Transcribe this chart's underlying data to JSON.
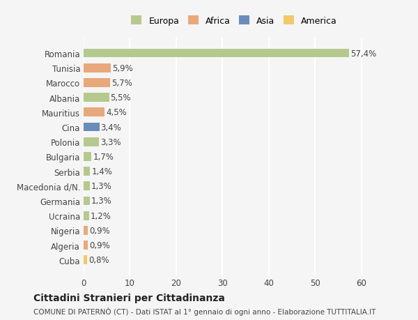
{
  "countries": [
    "Romania",
    "Tunisia",
    "Marocco",
    "Albania",
    "Mauritius",
    "Cina",
    "Polonia",
    "Bulgaria",
    "Serbia",
    "Macedonia d/N.",
    "Germania",
    "Ucraina",
    "Nigeria",
    "Algeria",
    "Cuba"
  ],
  "values": [
    57.4,
    5.9,
    5.7,
    5.5,
    4.5,
    3.4,
    3.3,
    1.7,
    1.4,
    1.3,
    1.3,
    1.2,
    0.9,
    0.9,
    0.8
  ],
  "labels": [
    "57,4%",
    "5,9%",
    "5,7%",
    "5,5%",
    "4,5%",
    "3,4%",
    "3,3%",
    "1,7%",
    "1,4%",
    "1,3%",
    "1,3%",
    "1,2%",
    "0,9%",
    "0,9%",
    "0,8%"
  ],
  "colors": [
    "#b5c98e",
    "#e8a87c",
    "#e8a87c",
    "#b5c98e",
    "#e8a87c",
    "#6b8cba",
    "#b5c98e",
    "#b5c98e",
    "#b5c98e",
    "#b5c98e",
    "#b5c98e",
    "#b5c98e",
    "#e8a87c",
    "#e8a87c",
    "#f0c96b"
  ],
  "legend_labels": [
    "Europa",
    "Africa",
    "Asia",
    "America"
  ],
  "legend_colors": [
    "#b5c98e",
    "#e8a87c",
    "#6b8cba",
    "#f0c96b"
  ],
  "xlim": [
    0,
    65
  ],
  "xticks": [
    0,
    10,
    20,
    30,
    40,
    50,
    60
  ],
  "title": "Cittadini Stranieri per Cittadinanza",
  "subtitle": "COMUNE DI PATERNÒ (CT) - Dati ISTAT al 1° gennaio di ogni anno - Elaborazione TUTTITALIA.IT",
  "bg_color": "#f5f5f5",
  "bar_height": 0.6,
  "grid_color": "#ffffff",
  "label_fontsize": 8.5,
  "tick_fontsize": 8.5
}
